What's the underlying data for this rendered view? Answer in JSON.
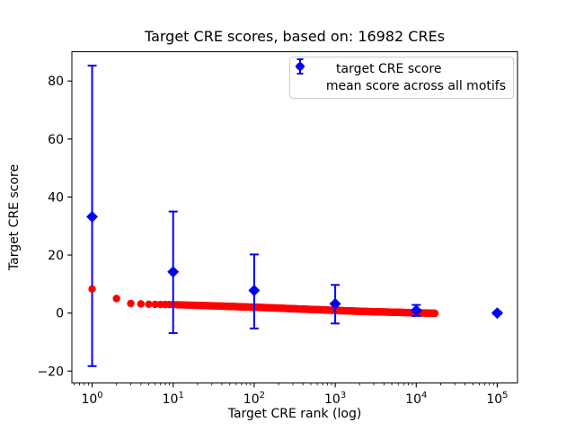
{
  "colors": {
    "red": "#ff0000",
    "blue": "#0000ff",
    "text": "#000000",
    "spine": "#000000",
    "legend_border": "#cccccc",
    "background": "#ffffff"
  },
  "legend": {
    "items": [
      {
        "label": "target CRE score",
        "marker": "circle",
        "color": "#ff0000"
      },
      {
        "label": "mean score across all motifs",
        "marker": "diamond-errorbar",
        "color": "#0000ff"
      }
    ]
  },
  "chart_data": {
    "type": "scatter",
    "title": "Target CRE scores, based on: 16982 CREs",
    "xlabel": "Target CRE rank (log)",
    "ylabel": "Target CRE score",
    "x_scale": "log",
    "grid": false,
    "legend_position": "upper right",
    "xlim_log10": [
      -0.25,
      5.25
    ],
    "ylim": [
      -24.1,
      90.1
    ],
    "x_ticks": [
      {
        "base": "10",
        "exp": "0"
      },
      {
        "base": "10",
        "exp": "1"
      },
      {
        "base": "10",
        "exp": "2"
      },
      {
        "base": "10",
        "exp": "3"
      },
      {
        "base": "10",
        "exp": "4"
      },
      {
        "base": "10",
        "exp": "5"
      }
    ],
    "x_minor_subs": [
      2,
      3,
      4,
      5,
      6,
      7,
      8,
      9
    ],
    "y_ticks": [
      {
        "value": -20,
        "label": "−20"
      },
      {
        "value": 0,
        "label": "0"
      },
      {
        "value": 20,
        "label": "20"
      },
      {
        "value": 40,
        "label": "40"
      },
      {
        "value": 60,
        "label": "60"
      },
      {
        "value": 80,
        "label": "80"
      }
    ],
    "series": [
      {
        "name": "target CRE score",
        "marker": "circle",
        "color": "#ff0000",
        "total_points": 16982,
        "sampled_ranks": [
          1,
          2,
          3,
          4,
          5,
          6,
          8,
          10,
          15,
          20,
          30,
          50,
          70,
          100,
          150,
          200,
          300,
          500,
          700,
          1000,
          1500,
          2000,
          3000,
          5000,
          7000,
          10000,
          13000,
          16982
        ],
        "sampled_values": [
          8.3,
          5.0,
          3.3,
          3.15,
          3.05,
          3.0,
          2.95,
          2.9,
          2.75,
          2.65,
          2.5,
          2.3,
          2.15,
          2.0,
          1.85,
          1.7,
          1.5,
          1.25,
          1.1,
          0.9,
          0.75,
          0.6,
          0.45,
          0.3,
          0.2,
          0.1,
          0.0,
          -0.1
        ]
      },
      {
        "name": "mean score across all motifs",
        "marker": "diamond",
        "color": "#0000ff",
        "ranks": [
          1,
          10,
          100,
          1000,
          10000,
          100000
        ],
        "means": [
          33.2,
          14.2,
          7.8,
          3.2,
          0.9,
          0.0
        ],
        "err_high": [
          85.3,
          35.0,
          20.2,
          9.7,
          2.8,
          0.4
        ],
        "err_low": [
          -18.3,
          -6.9,
          -5.3,
          -3.6,
          -1.0,
          -0.4
        ]
      }
    ]
  }
}
